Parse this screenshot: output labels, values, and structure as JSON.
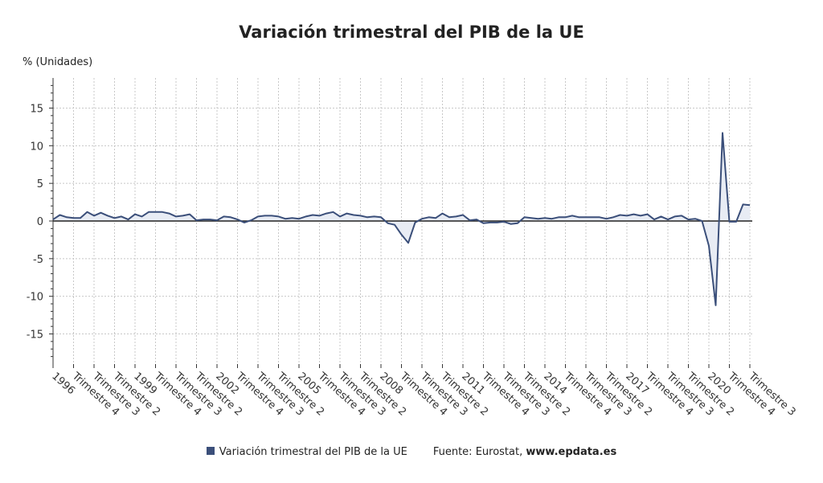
{
  "chart_data": {
    "type": "area",
    "title": "Variación trimestral del PIB de la UE",
    "ylabel": "% (Unidades)",
    "ylim": [
      -19,
      19
    ],
    "yticks": [
      15,
      10,
      5,
      0,
      -5,
      -10,
      -15
    ],
    "x_tick_labels": [
      "1996",
      "Trimestre 4",
      "Trimestre 3",
      "Trimestre 2",
      "1999",
      "Trimestre 4",
      "Trimestre 3",
      "Trimestre 2",
      "2002",
      "Trimestre 4",
      "Trimestre 3",
      "Trimestre 2",
      "2005",
      "Trimestre 4",
      "Trimestre 3",
      "Trimestre 2",
      "2008",
      "Trimestre 4",
      "Trimestre 3",
      "Trimestre 2",
      "2011",
      "Trimestre 4",
      "Trimestre 3",
      "Trimestre 2",
      "2014",
      "Trimestre 4",
      "Trimestre 3",
      "Trimestre 2",
      "2017",
      "Trimestre 4",
      "Trimestre 3",
      "Trimestre 2",
      "2020",
      "Trimestre 4",
      "Trimestre 3"
    ],
    "series": [
      {
        "name": "Variación trimestral del PIB de la UE",
        "color": "#3b4f7a",
        "fill": "#e8ecf4",
        "values": [
          0.2,
          0.8,
          0.5,
          0.4,
          0.4,
          1.2,
          0.7,
          1.1,
          0.7,
          0.4,
          0.6,
          0.2,
          0.9,
          0.6,
          1.2,
          1.2,
          1.2,
          1.0,
          0.6,
          0.7,
          0.9,
          0.1,
          0.2,
          0.2,
          0.1,
          0.6,
          0.5,
          0.2,
          -0.2,
          0.1,
          0.6,
          0.7,
          0.7,
          0.6,
          0.3,
          0.4,
          0.3,
          0.6,
          0.8,
          0.7,
          1.0,
          1.2,
          0.6,
          1.0,
          0.8,
          0.7,
          0.5,
          0.6,
          0.5,
          -0.3,
          -0.5,
          -1.8,
          -2.9,
          -0.2,
          0.3,
          0.5,
          0.4,
          1.0,
          0.5,
          0.6,
          0.8,
          0.1,
          0.2,
          -0.3,
          -0.2,
          -0.2,
          -0.1,
          -0.4,
          -0.3,
          0.5,
          0.4,
          0.3,
          0.4,
          0.3,
          0.5,
          0.5,
          0.7,
          0.5,
          0.5,
          0.5,
          0.5,
          0.3,
          0.5,
          0.8,
          0.7,
          0.9,
          0.7,
          0.9,
          0.2,
          0.6,
          0.2,
          0.6,
          0.7,
          0.2,
          0.3,
          0.0,
          -3.3,
          -11.2,
          11.7,
          -0.1,
          -0.1,
          2.2,
          2.1
        ]
      }
    ]
  },
  "legend": {
    "label": "Variación trimestral del PIB de la UE"
  },
  "source": {
    "prefix": "Fuente: Eurostat,",
    "site": "www.epdata.es"
  }
}
